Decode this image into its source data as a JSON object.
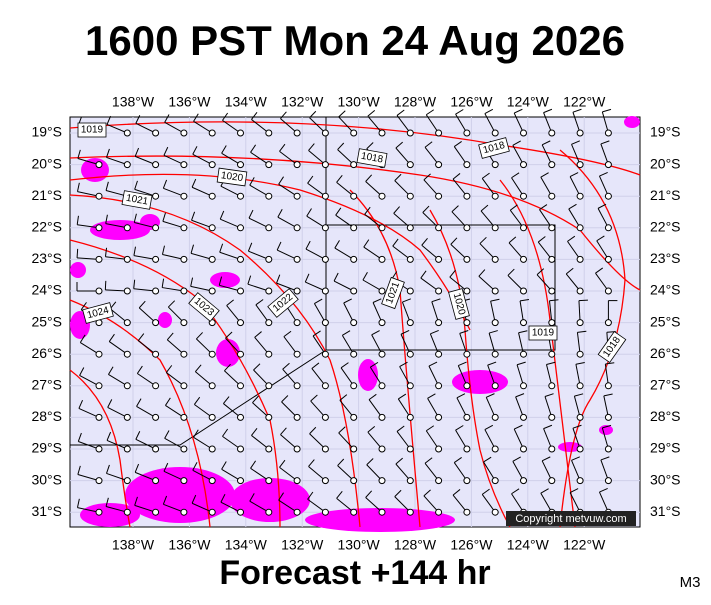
{
  "title": "1600 PST Mon 24 Aug 2026",
  "footer": "Forecast +144 hr",
  "model": "M3",
  "copyright": "Copyright metvuw.com",
  "longitude_labels": [
    "138°W",
    "136°W",
    "134°W",
    "132°W",
    "130°W",
    "128°W",
    "126°W",
    "124°W",
    "122°W"
  ],
  "latitude_labels": [
    "19°S",
    "20°S",
    "21°S",
    "22°S",
    "23°S",
    "24°S",
    "25°S",
    "26°S",
    "27°S",
    "28°S",
    "29°S",
    "30°S",
    "31°S"
  ],
  "isobar_labels": [
    "1019",
    "1020",
    "1021",
    "1018",
    "1018",
    "1023",
    "1022",
    "1021",
    "1020",
    "1024",
    "1019",
    "1018"
  ]
}
